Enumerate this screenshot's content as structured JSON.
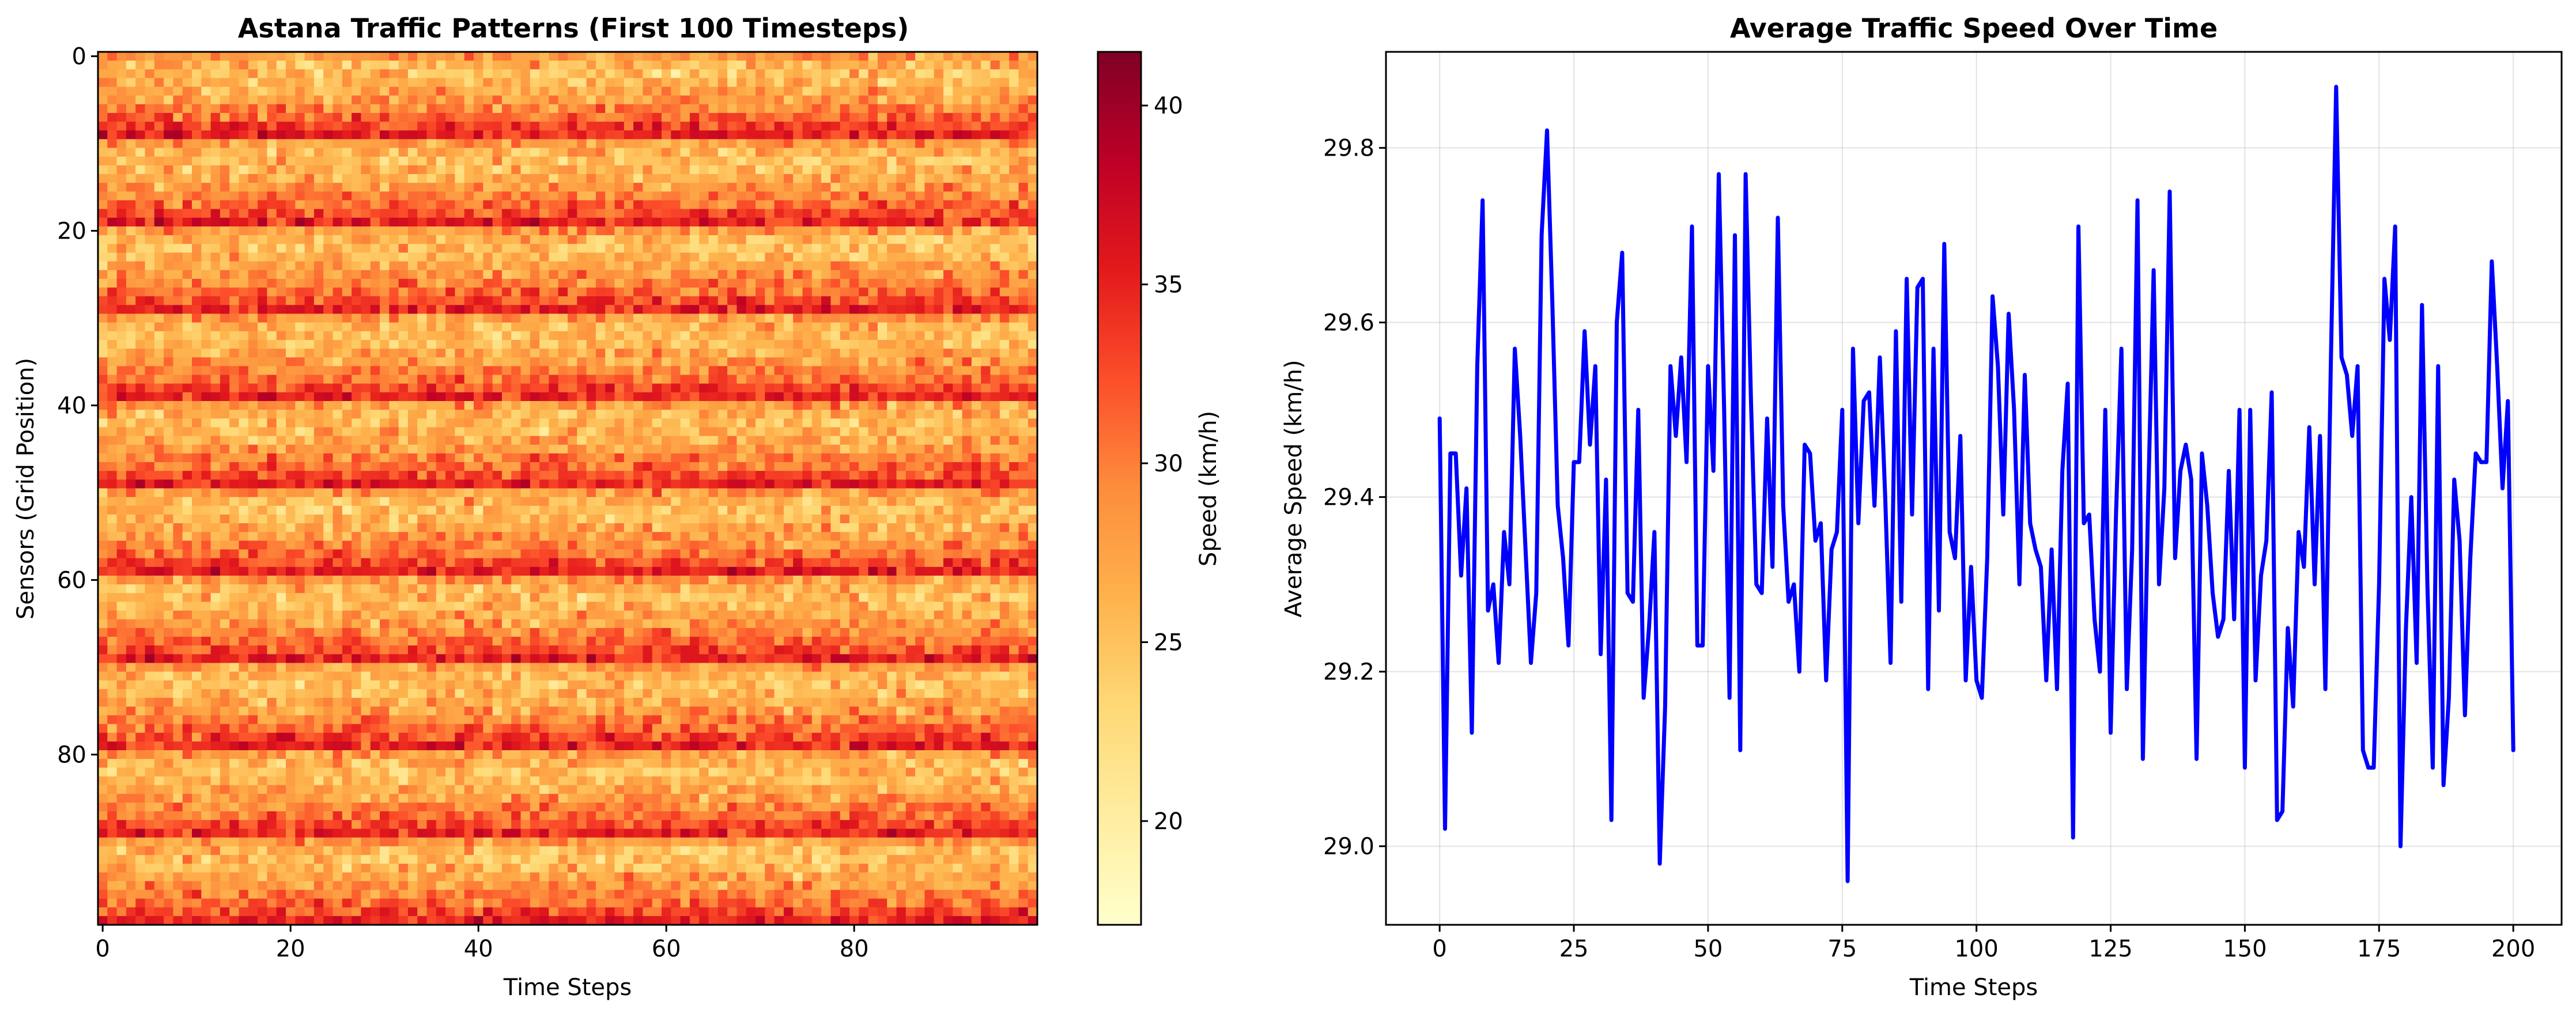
{
  "chart_data": [
    {
      "type": "heatmap",
      "title": "Astana Traffic Patterns (First 100 Timesteps)",
      "xlabel": "Time Steps",
      "ylabel": "Sensors (Grid Position)",
      "n_time_steps": 100,
      "n_sensors": 100,
      "xlim": [
        0,
        99
      ],
      "ylim": [
        0,
        99
      ],
      "xticks": [
        0,
        20,
        40,
        60,
        80
      ],
      "yticks": [
        0,
        20,
        40,
        60,
        80
      ],
      "colormap": "YlOrRd",
      "row_pattern_period": 10,
      "row_pattern_mean_speeds": [
        28,
        26,
        25.5,
        26,
        27,
        28,
        29.5,
        31,
        33,
        35
      ],
      "value_range": [
        18,
        40
      ],
      "colorbar": {
        "label": "Speed (km/h)",
        "range": [
          17.1,
          41.5
        ],
        "ticks": [
          20,
          25,
          30,
          35,
          40
        ]
      }
    },
    {
      "type": "line",
      "title": "Average Traffic Speed Over Time",
      "xlabel": "Time Steps",
      "ylabel": "Average Speed (km/h)",
      "color": "#0000ff",
      "grid": true,
      "xlim": [
        -10,
        209
      ],
      "ylim": [
        28.91,
        29.91
      ],
      "xticks": [
        0,
        25,
        50,
        75,
        100,
        125,
        150,
        175,
        200
      ],
      "yticks": [
        29.0,
        29.2,
        29.4,
        29.6,
        29.8
      ],
      "y": [
        29.49,
        29.02,
        29.45,
        29.45,
        29.31,
        29.41,
        29.13,
        29.55,
        29.74,
        29.27,
        29.3,
        29.21,
        29.36,
        29.3,
        29.57,
        29.47,
        29.34,
        29.21,
        29.29,
        29.7,
        29.82,
        29.62,
        29.39,
        29.33,
        29.23,
        29.44,
        29.44,
        29.59,
        29.46,
        29.55,
        29.22,
        29.42,
        29.03,
        29.6,
        29.68,
        29.29,
        29.28,
        29.5,
        29.17,
        29.25,
        29.36,
        28.98,
        29.16,
        29.55,
        29.47,
        29.56,
        29.44,
        29.71,
        29.23,
        29.23,
        29.55,
        29.43,
        29.77,
        29.5,
        29.17,
        29.7,
        29.11,
        29.77,
        29.51,
        29.3,
        29.29,
        29.49,
        29.32,
        29.72,
        29.39,
        29.28,
        29.3,
        29.2,
        29.46,
        29.45,
        29.35,
        29.37,
        29.19,
        29.34,
        29.36,
        29.5,
        28.96,
        29.57,
        29.37,
        29.51,
        29.52,
        29.39,
        29.56,
        29.4,
        29.21,
        29.59,
        29.28,
        29.65,
        29.38,
        29.64,
        29.65,
        29.18,
        29.57,
        29.27,
        29.69,
        29.36,
        29.33,
        29.47,
        29.19,
        29.32,
        29.19,
        29.17,
        29.33,
        29.63,
        29.55,
        29.38,
        29.61,
        29.5,
        29.3,
        29.54,
        29.37,
        29.34,
        29.32,
        29.19,
        29.34,
        29.18,
        29.43,
        29.53,
        29.01,
        29.71,
        29.37,
        29.38,
        29.26,
        29.2,
        29.5,
        29.13,
        29.38,
        29.57,
        29.18,
        29.34,
        29.74,
        29.1,
        29.4,
        29.66,
        29.3,
        29.41,
        29.75,
        29.33,
        29.43,
        29.46,
        29.42,
        29.1,
        29.45,
        29.39,
        29.29,
        29.24,
        29.26,
        29.43,
        29.26,
        29.5,
        29.09,
        29.5,
        29.19,
        29.31,
        29.35,
        29.52,
        29.03,
        29.04,
        29.25,
        29.16,
        29.36,
        29.32,
        29.48,
        29.3,
        29.47,
        29.18,
        29.55,
        29.87,
        29.56,
        29.54,
        29.47,
        29.55,
        29.11,
        29.09,
        29.09,
        29.3,
        29.65,
        29.58,
        29.71,
        29.0,
        29.25,
        29.4,
        29.21,
        29.62,
        29.3,
        29.09,
        29.55,
        29.07,
        29.17,
        29.42,
        29.35,
        29.15,
        29.33,
        29.45,
        29.44,
        29.44,
        29.67,
        29.55,
        29.41,
        29.51,
        29.11
      ]
    }
  ]
}
